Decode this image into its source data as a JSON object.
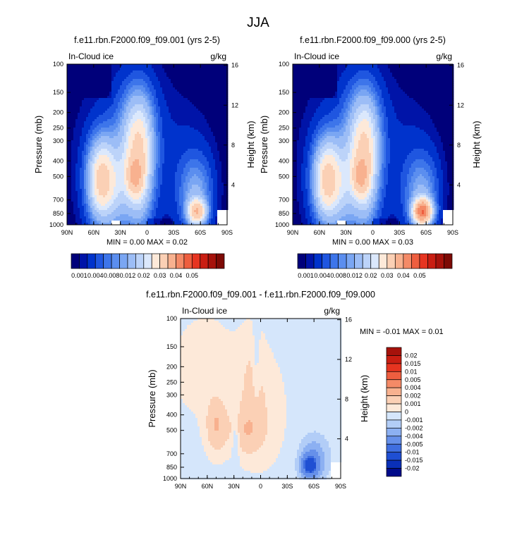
{
  "page_title": "JJA",
  "chart_data": [
    {
      "type": "heatmap",
      "title": "f.e11.rbn.F2000.f09_f09.001 (yrs 2-5)",
      "variable": "In-Cloud ice",
      "units": "g/kg",
      "xlabel": "",
      "ylabel": "Pressure (mb)",
      "y2label": "Height (km)",
      "x_ticks": [
        "90N",
        "60N",
        "30N",
        "0",
        "30S",
        "60S",
        "90S"
      ],
      "y_ticks": [
        100,
        150,
        200,
        250,
        300,
        400,
        500,
        700,
        850,
        1000
      ],
      "y2_ticks": [
        4,
        8,
        12,
        16
      ],
      "y_scale": "log",
      "min_label": "MIN =   0.00  MAX =   0.02",
      "min": 0.0,
      "max": 0.02,
      "colorbar": {
        "placement": "bottom",
        "labels": [
          "0.001",
          "0.004",
          "0.008",
          "0.012",
          "0.02",
          "0.03",
          "0.04",
          "0.05"
        ],
        "colors": [
          "#00007a",
          "#0014a8",
          "#0033cc",
          "#1f56e0",
          "#3d75ea",
          "#5b8eef",
          "#7aa6f3",
          "#9cbdf6",
          "#bcd3f9",
          "#dbe8fc",
          "#fde9d9",
          "#fbd0b5",
          "#f8b18f",
          "#f48a67",
          "#ee5e3f",
          "#e63420",
          "#c91e12",
          "#a6120b",
          "#7d0a05"
        ]
      },
      "ice_peak": 0.02
    },
    {
      "type": "heatmap",
      "title": "f.e11.rbn.F2000.f09_f09.000 (yrs 2-5)",
      "variable": "In-Cloud ice",
      "units": "g/kg",
      "xlabel": "",
      "ylabel": "Pressure (mb)",
      "y2label": "Height (km)",
      "x_ticks": [
        "90N",
        "60N",
        "30N",
        "0",
        "30S",
        "60S",
        "90S"
      ],
      "y_ticks": [
        100,
        150,
        200,
        250,
        300,
        400,
        500,
        700,
        850,
        1000
      ],
      "y2_ticks": [
        4,
        8,
        12,
        16
      ],
      "y_scale": "log",
      "min_label": "MIN =   0.00  MAX =   0.03",
      "min": 0.0,
      "max": 0.03,
      "colorbar": {
        "placement": "bottom",
        "labels": [
          "0.001",
          "0.004",
          "0.008",
          "0.012",
          "0.02",
          "0.03",
          "0.04",
          "0.05"
        ],
        "colors": [
          "#00007a",
          "#0014a8",
          "#0033cc",
          "#1f56e0",
          "#3d75ea",
          "#5b8eef",
          "#7aa6f3",
          "#9cbdf6",
          "#bcd3f9",
          "#dbe8fc",
          "#fde9d9",
          "#fbd0b5",
          "#f8b18f",
          "#f48a67",
          "#ee5e3f",
          "#e63420",
          "#c91e12",
          "#a6120b",
          "#7d0a05"
        ]
      },
      "ice_peak": 0.03
    },
    {
      "type": "heatmap",
      "title": "f.e11.rbn.F2000.f09_f09.001 - f.e11.rbn.F2000.f09_f09.000",
      "variable": "In-Cloud ice",
      "units": "g/kg",
      "xlabel": "",
      "ylabel": "Pressure (mb)",
      "y2label": "Height (km)",
      "x_ticks": [
        "90N",
        "60N",
        "30N",
        "0",
        "30S",
        "60S",
        "90S"
      ],
      "y_ticks": [
        100,
        150,
        200,
        250,
        300,
        400,
        500,
        700,
        850,
        1000
      ],
      "y2_ticks": [
        4,
        8,
        12,
        16
      ],
      "y_scale": "log",
      "min_label": "MIN =  -0.01  MAX =   0.01",
      "min": -0.01,
      "max": 0.01,
      "colorbar": {
        "placement": "right",
        "labels": [
          "0.02",
          "0.015",
          "0.01",
          "0.005",
          "0.004",
          "0.002",
          "0.001",
          "0",
          "-0.001",
          "-0.002",
          "-0.004",
          "-0.005",
          "-0.01",
          "-0.015",
          "-0.02"
        ],
        "colors": [
          "#a6120b",
          "#c91e12",
          "#e63420",
          "#ee5e3f",
          "#f48a67",
          "#f8b18f",
          "#fbd0b5",
          "#fde9d9",
          "#d5e6fb",
          "#b2cdf7",
          "#8cb0f2",
          "#6690ea",
          "#3f6ee0",
          "#1f4fd3",
          "#0a30b8",
          "#000b8a"
        ]
      }
    }
  ]
}
